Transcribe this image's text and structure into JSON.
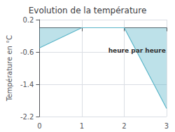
{
  "chart_data": {
    "type": "line",
    "title": "Evolution de la température",
    "xlabel": "heure par heure",
    "ylabel": "Température en °C",
    "x": [
      0,
      1,
      2,
      3
    ],
    "values": [
      -0.5,
      0.0,
      0.0,
      -2.0
    ],
    "color": "#5ab5c8",
    "xlim": [
      0,
      3
    ],
    "xticks": [
      0,
      1,
      2,
      3
    ],
    "ylim": [
      -2.2,
      0.2
    ],
    "yticks": [
      0.2,
      -0.6,
      -1.4,
      -2.2
    ],
    "grid": true
  }
}
